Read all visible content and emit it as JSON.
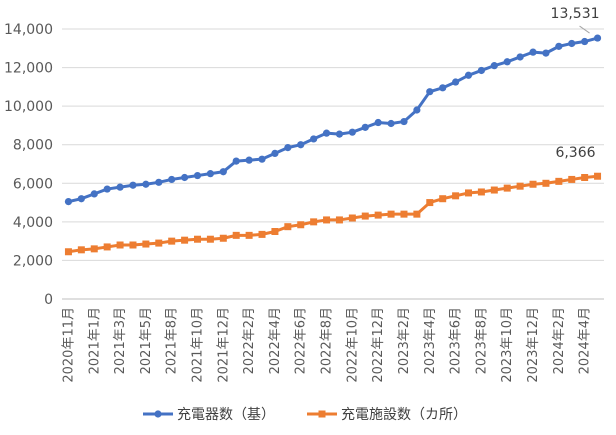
{
  "chart_data": {
    "type": "line",
    "title": "",
    "xlabel": "",
    "ylabel": "",
    "ylim": [
      0,
      14000
    ],
    "yticks": [
      0,
      2000,
      4000,
      6000,
      8000,
      10000,
      12000,
      14000
    ],
    "ytick_labels": [
      "0",
      "2,000",
      "4,000",
      "6,000",
      "8,000",
      "10,000",
      "12,000",
      "14,000"
    ],
    "grid": true,
    "legend_position": "bottom",
    "x": [
      "2020年11月",
      "2020年12月",
      "2021年1月",
      "2021年2月",
      "2021年3月",
      "2021年4月",
      "2021年5月",
      "2021年6月",
      "2021年8月",
      "2021年9月",
      "2021年10月",
      "2021年11月",
      "2021年12月",
      "2022年1月",
      "2022年2月",
      "2022年3月",
      "2022年4月",
      "2022年5月",
      "2022年6月",
      "2022年7月",
      "2022年8月",
      "2022年9月",
      "2022年10月",
      "2022年11月",
      "2022年12月",
      "2023年1月",
      "2023年2月",
      "2023年3月",
      "2023年4月",
      "2023年5月",
      "2023年6月",
      "2023年7月",
      "2023年8月",
      "2023年9月",
      "2023年10月",
      "2023年11月",
      "2023年12月",
      "2024年1月",
      "2024年2月",
      "2024年3月",
      "2024年4月",
      "2024年5月"
    ],
    "x_tick_labels": [
      "2020年11月",
      "2021年1月",
      "2021年3月",
      "2021年5月",
      "2021年8月",
      "2021年10月",
      "2021年12月",
      "2022年2月",
      "2022年4月",
      "2022年6月",
      "2022年8月",
      "2022年10月",
      "2022年12月",
      "2023年2月",
      "2023年4月",
      "2023年6月",
      "2023年8月",
      "2023年10月",
      "2023年12月",
      "2024年2月",
      "2024年4月"
    ],
    "series": [
      {
        "name": "充電器数（基）",
        "color": "#4472c4",
        "marker": "circle",
        "values": [
          5050,
          5200,
          5450,
          5700,
          5800,
          5900,
          5950,
          6050,
          6200,
          6300,
          6400,
          6500,
          6600,
          7150,
          7200,
          7250,
          7550,
          7850,
          8000,
          8300,
          8600,
          8550,
          8650,
          8900,
          9150,
          9100,
          9200,
          9800,
          10750,
          10950,
          11250,
          11600,
          11850,
          12100,
          12300,
          12550,
          12800,
          12750,
          13100,
          13250,
          13350,
          13531
        ],
        "end_label": "13,531"
      },
      {
        "name": "充電施設数（カ所）",
        "color": "#ed7d31",
        "marker": "square",
        "values": [
          2450,
          2550,
          2600,
          2700,
          2800,
          2800,
          2850,
          2900,
          3000,
          3050,
          3100,
          3100,
          3150,
          3300,
          3300,
          3350,
          3500,
          3750,
          3850,
          4000,
          4100,
          4100,
          4200,
          4300,
          4350,
          4400,
          4400,
          4400,
          5000,
          5200,
          5350,
          5500,
          5550,
          5650,
          5750,
          5850,
          5950,
          6000,
          6100,
          6200,
          6300,
          6366
        ],
        "end_label": "6,366"
      }
    ]
  }
}
